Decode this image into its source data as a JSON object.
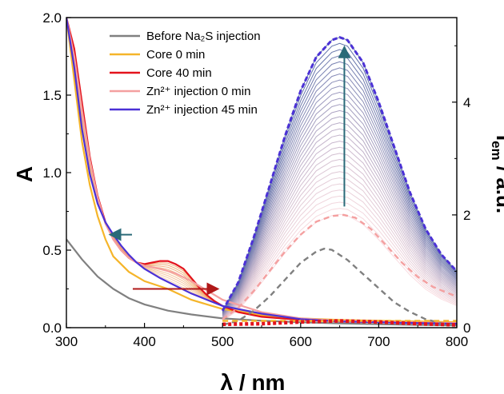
{
  "chart_data": {
    "type": "line",
    "title": "",
    "xlabel": "λ / nm",
    "ylabel_left": "A",
    "ylabel_right_main": "I",
    "ylabel_right_sub": "em",
    "ylabel_right_tail": " / a.u.",
    "xlim": [
      300,
      800
    ],
    "ylim_left": [
      0,
      2.0
    ],
    "ylim_right": [
      0,
      5.5
    ],
    "x_ticks": [
      "300",
      "400",
      "500",
      "600",
      "700",
      "800"
    ],
    "y_left_ticks": [
      "0.0",
      "0.5",
      "1.0",
      "1.5",
      "2.0"
    ],
    "y_right_ticks": [
      "0",
      "2",
      "4"
    ],
    "legend_position": "top-left",
    "legend": [
      {
        "name": "Before Na₂S injection",
        "color": "#808080"
      },
      {
        "name": "Core 0 min",
        "color": "#f5b52a"
      },
      {
        "name": "Core 40 min",
        "color": "#e3131c"
      },
      {
        "name": "Zn²⁺ injection 0 min",
        "color": "#f4a0a0"
      },
      {
        "name": "Zn²⁺ injection 45 min",
        "color": "#4b31d6"
      }
    ],
    "absorbance_series": [
      {
        "name": "Before Na₂S injection",
        "color": "#808080",
        "x": [
          300,
          320,
          340,
          360,
          380,
          400,
          430,
          460,
          500,
          550,
          600,
          650,
          700,
          750,
          800
        ],
        "y": [
          0.57,
          0.44,
          0.33,
          0.25,
          0.19,
          0.15,
          0.11,
          0.085,
          0.06,
          0.045,
          0.035,
          0.028,
          0.022,
          0.018,
          0.015
        ]
      },
      {
        "name": "Core 0 min",
        "color": "#f5b52a",
        "x": [
          300,
          310,
          320,
          330,
          340,
          350,
          360,
          380,
          400,
          430,
          460,
          500,
          550,
          600,
          650,
          700,
          750,
          800
        ],
        "y": [
          2.0,
          1.6,
          1.2,
          0.92,
          0.72,
          0.57,
          0.46,
          0.36,
          0.3,
          0.25,
          0.18,
          0.12,
          0.08,
          0.06,
          0.05,
          0.045,
          0.04,
          0.035
        ]
      },
      {
        "name": "Core 40 min",
        "color": "#e3131c",
        "x": [
          300,
          310,
          320,
          330,
          340,
          350,
          360,
          370,
          380,
          390,
          400,
          410,
          420,
          430,
          440,
          450,
          460,
          470,
          480,
          490,
          500,
          520,
          550,
          600,
          650,
          700,
          750,
          800
        ],
        "y": [
          2.0,
          1.8,
          1.45,
          1.1,
          0.85,
          0.68,
          0.57,
          0.5,
          0.45,
          0.42,
          0.41,
          0.42,
          0.43,
          0.43,
          0.41,
          0.38,
          0.32,
          0.26,
          0.21,
          0.17,
          0.14,
          0.1,
          0.07,
          0.05,
          0.04,
          0.035,
          0.03,
          0.03
        ]
      },
      {
        "name": "Zn²⁺ injection 0 min",
        "color": "#f4a0a0",
        "x": [
          300,
          310,
          320,
          330,
          340,
          350,
          360,
          370,
          380,
          390,
          400,
          420,
          440,
          460,
          480,
          500,
          550,
          600,
          650,
          700,
          750,
          800
        ],
        "y": [
          2.0,
          1.75,
          1.4,
          1.08,
          0.84,
          0.67,
          0.57,
          0.5,
          0.45,
          0.42,
          0.4,
          0.38,
          0.35,
          0.3,
          0.24,
          0.18,
          0.1,
          0.06,
          0.045,
          0.04,
          0.035,
          0.03
        ]
      },
      {
        "name": "Zn²⁺ injection 45 min",
        "color": "#4b31d6",
        "x": [
          300,
          310,
          320,
          330,
          340,
          350,
          360,
          370,
          380,
          390,
          400,
          420,
          440,
          460,
          480,
          500,
          550,
          600,
          650,
          700,
          750,
          800
        ],
        "y": [
          2.0,
          1.68,
          1.28,
          0.99,
          0.8,
          0.68,
          0.6,
          0.53,
          0.47,
          0.42,
          0.38,
          0.32,
          0.27,
          0.22,
          0.18,
          0.14,
          0.09,
          0.055,
          0.04,
          0.035,
          0.03,
          0.025
        ]
      }
    ],
    "emission_series": [
      {
        "name": "Before Na₂S injection",
        "color": "#808080",
        "style": "dashed",
        "x": [
          500,
          520,
          540,
          560,
          580,
          600,
          620,
          630,
          640,
          660,
          680,
          700,
          720,
          740,
          760,
          780,
          800
        ],
        "y": [
          0.05,
          0.12,
          0.3,
          0.55,
          0.85,
          1.15,
          1.35,
          1.4,
          1.38,
          1.2,
          0.95,
          0.7,
          0.45,
          0.28,
          0.15,
          0.08,
          0.04
        ]
      },
      {
        "name": "Zn²⁺ injection 0 min",
        "color": "#f4a0a0",
        "style": "dashed",
        "x": [
          500,
          520,
          540,
          560,
          580,
          600,
          620,
          640,
          655,
          670,
          690,
          710,
          730,
          750,
          770,
          800
        ],
        "y": [
          0.15,
          0.35,
          0.65,
          1.0,
          1.35,
          1.65,
          1.88,
          1.98,
          2.0,
          1.95,
          1.75,
          1.45,
          1.15,
          0.9,
          0.72,
          0.55
        ]
      },
      {
        "name": "Zn²⁺ injection 45 min",
        "color": "#4b31d6",
        "style": "dashed-thick",
        "x": [
          500,
          520,
          540,
          560,
          580,
          600,
          620,
          640,
          650,
          660,
          680,
          700,
          720,
          740,
          760,
          780,
          800
        ],
        "y": [
          0.3,
          0.8,
          1.6,
          2.5,
          3.4,
          4.2,
          4.8,
          5.1,
          5.15,
          5.1,
          4.7,
          4.0,
          3.2,
          2.4,
          1.75,
          1.3,
          1.0
        ]
      },
      {
        "name": "Core 0 min",
        "color": "#f5b52a",
        "style": "dashed",
        "x": [
          500,
          550,
          600,
          650,
          700,
          750,
          800
        ],
        "y": [
          0.12,
          0.12,
          0.12,
          0.12,
          0.12,
          0.12,
          0.12
        ]
      },
      {
        "name": "Core 40 min",
        "color": "#e3131c",
        "style": "dotted-thick",
        "x": [
          500,
          550,
          600,
          650,
          700,
          750,
          800
        ],
        "y": [
          0.06,
          0.07,
          0.1,
          0.12,
          0.1,
          0.07,
          0.05
        ]
      }
    ],
    "emission_growth": {
      "from_scale": 0.39,
      "to_scale": 1.0,
      "count": 30,
      "color_start": "#f4c0c8",
      "color_end": "#5a6ea8"
    },
    "arrows": [
      {
        "from": [
          1.0,
          0.72
        ],
        "to": [
          1.0,
          0.55
        ],
        "axis": "left-curve",
        "note": "absorbance decrease arrow",
        "color": "#2a6a78"
      },
      {
        "from": [
          400,
          0.21
        ],
        "to": [
          500,
          0.21
        ],
        "axis": "left",
        "color": "#b01818"
      },
      {
        "from": [
          660,
          2.1
        ],
        "to": [
          660,
          5.0
        ],
        "axis": "right",
        "color": "#2a6a78"
      }
    ]
  }
}
